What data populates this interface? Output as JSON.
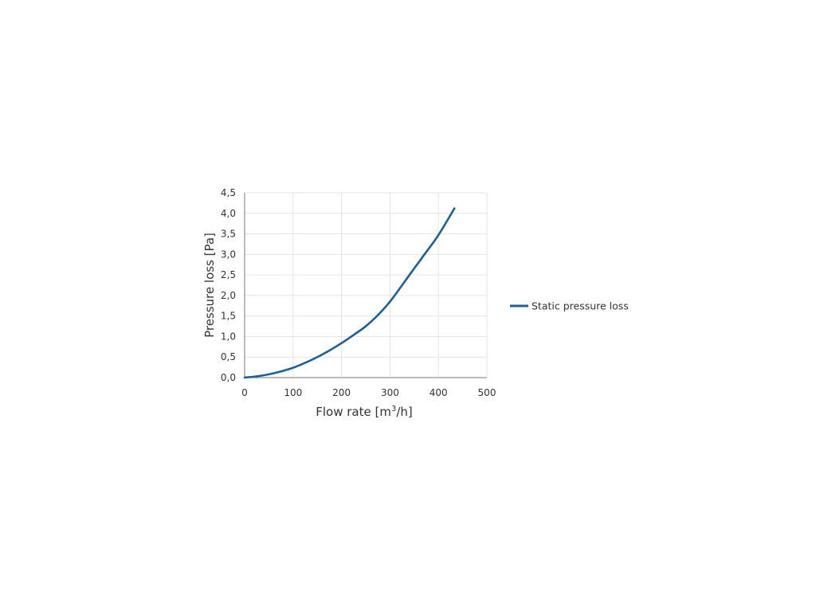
{
  "chart_data": {
    "type": "line",
    "title": "",
    "xlabel_main": "Flow rate [m",
    "xlabel_sup": "3",
    "xlabel_end": "/h]",
    "ylabel": "Pressure loss [Pa]",
    "xlim": [
      0,
      500
    ],
    "ylim": [
      0,
      4.5
    ],
    "x_ticks": [
      "0",
      "100",
      "200",
      "300",
      "400",
      "500"
    ],
    "y_ticks": [
      "0,0",
      "0,5",
      "1,0",
      "1,5",
      "2,0",
      "2,5",
      "3,0",
      "3,5",
      "4,0",
      "4,5"
    ],
    "grid": true,
    "legend_position": "right",
    "series": [
      {
        "name": "Static pressure loss",
        "color": "#1f5f96",
        "x": [
          0,
          25,
          50,
          75,
          100,
          125,
          150,
          175,
          200,
          225,
          250,
          275,
          300,
          325,
          350,
          375,
          400,
          433
        ],
        "y": [
          0.0,
          0.03,
          0.08,
          0.15,
          0.24,
          0.36,
          0.5,
          0.66,
          0.84,
          1.04,
          1.25,
          1.52,
          1.85,
          2.25,
          2.66,
          3.06,
          3.47,
          4.12
        ]
      }
    ]
  }
}
